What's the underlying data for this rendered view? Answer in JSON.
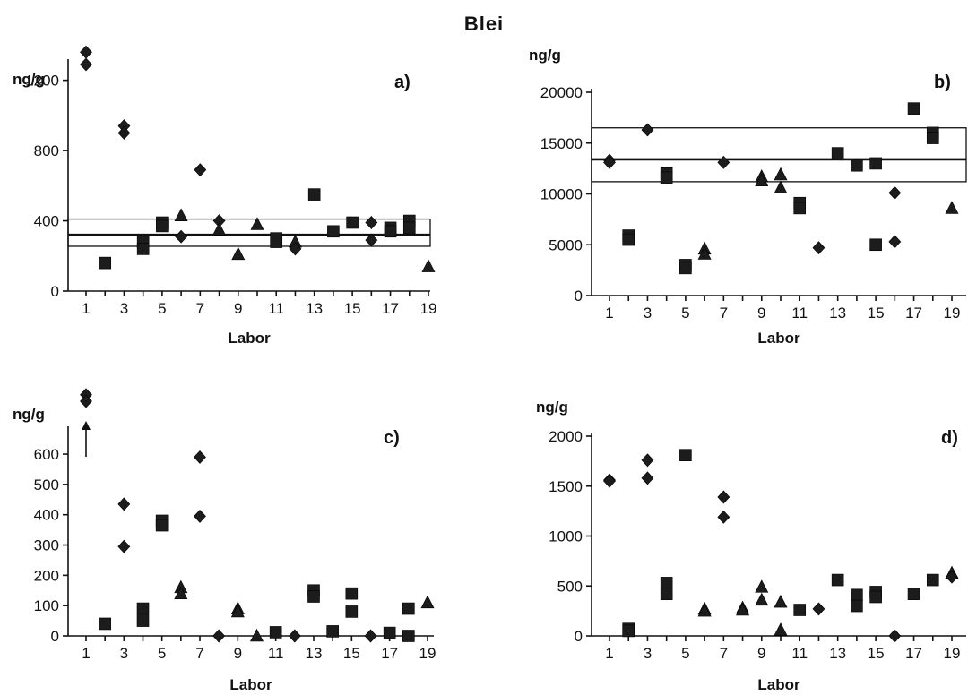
{
  "title": "Blei",
  "chart_data": [
    {
      "id": "a",
      "type": "scatter",
      "panel_label": "a)",
      "ylabel": "ng/g",
      "xlabel": "Labor",
      "xlim": [
        0.5,
        19.5
      ],
      "ylim": [
        0,
        1300
      ],
      "yticks": [
        0,
        400,
        800,
        1200
      ],
      "xticks": [
        1,
        3,
        5,
        7,
        9,
        11,
        13,
        15,
        17,
        19
      ],
      "band": {
        "lower": 255,
        "mean": 320,
        "upper": 410
      },
      "points": [
        {
          "x": 1,
          "y": 1360,
          "marker": "diamond"
        },
        {
          "x": 1,
          "y": 1290,
          "marker": "diamond"
        },
        {
          "x": 2,
          "y": 160,
          "marker": "square"
        },
        {
          "x": 3,
          "y": 940,
          "marker": "diamond"
        },
        {
          "x": 3,
          "y": 900,
          "marker": "diamond"
        },
        {
          "x": 4,
          "y": 280,
          "marker": "square"
        },
        {
          "x": 4,
          "y": 240,
          "marker": "square"
        },
        {
          "x": 5,
          "y": 390,
          "marker": "square"
        },
        {
          "x": 5,
          "y": 370,
          "marker": "square"
        },
        {
          "x": 6,
          "y": 430,
          "marker": "triangle"
        },
        {
          "x": 6,
          "y": 310,
          "marker": "diamond"
        },
        {
          "x": 7,
          "y": 690,
          "marker": "diamond"
        },
        {
          "x": 8,
          "y": 400,
          "marker": "diamond"
        },
        {
          "x": 8,
          "y": 350,
          "marker": "triangle"
        },
        {
          "x": 9,
          "y": 210,
          "marker": "triangle"
        },
        {
          "x": 10,
          "y": 380,
          "marker": "triangle"
        },
        {
          "x": 11,
          "y": 300,
          "marker": "square"
        },
        {
          "x": 11,
          "y": 280,
          "marker": "square"
        },
        {
          "x": 12,
          "y": 280,
          "marker": "triangle"
        },
        {
          "x": 12,
          "y": 240,
          "marker": "diamond"
        },
        {
          "x": 13,
          "y": 550,
          "marker": "square"
        },
        {
          "x": 14,
          "y": 340,
          "marker": "square"
        },
        {
          "x": 15,
          "y": 390,
          "marker": "square"
        },
        {
          "x": 16,
          "y": 390,
          "marker": "diamond"
        },
        {
          "x": 16,
          "y": 290,
          "marker": "diamond"
        },
        {
          "x": 17,
          "y": 360,
          "marker": "square"
        },
        {
          "x": 17,
          "y": 340,
          "marker": "square"
        },
        {
          "x": 18,
          "y": 400,
          "marker": "square"
        },
        {
          "x": 18,
          "y": 360,
          "marker": "square"
        },
        {
          "x": 19,
          "y": 140,
          "marker": "triangle"
        }
      ]
    },
    {
      "id": "b",
      "type": "scatter",
      "panel_label": "b)",
      "ylabel": "ng/g",
      "xlabel": "Labor",
      "xlim": [
        0.5,
        19.5
      ],
      "ylim": [
        0,
        20000
      ],
      "yticks": [
        0,
        5000,
        10000,
        15000,
        20000
      ],
      "xticks": [
        1,
        3,
        5,
        7,
        9,
        11,
        13,
        15,
        17,
        19
      ],
      "band": {
        "lower": 11200,
        "mean": 13400,
        "upper": 16500
      },
      "points": [
        {
          "x": 1,
          "y": 13300,
          "marker": "diamond"
        },
        {
          "x": 1,
          "y": 13100,
          "marker": "diamond"
        },
        {
          "x": 2,
          "y": 5900,
          "marker": "square"
        },
        {
          "x": 2,
          "y": 5500,
          "marker": "square"
        },
        {
          "x": 3,
          "y": 16300,
          "marker": "diamond"
        },
        {
          "x": 4,
          "y": 12000,
          "marker": "square"
        },
        {
          "x": 4,
          "y": 11600,
          "marker": "square"
        },
        {
          "x": 5,
          "y": 3000,
          "marker": "square"
        },
        {
          "x": 5,
          "y": 2700,
          "marker": "square"
        },
        {
          "x": 6,
          "y": 4600,
          "marker": "triangle"
        },
        {
          "x": 6,
          "y": 4100,
          "marker": "triangle"
        },
        {
          "x": 7,
          "y": 13100,
          "marker": "diamond"
        },
        {
          "x": 9,
          "y": 11700,
          "marker": "triangle"
        },
        {
          "x": 9,
          "y": 11300,
          "marker": "triangle"
        },
        {
          "x": 10,
          "y": 11900,
          "marker": "triangle"
        },
        {
          "x": 10,
          "y": 10600,
          "marker": "triangle"
        },
        {
          "x": 11,
          "y": 9100,
          "marker": "square"
        },
        {
          "x": 11,
          "y": 8600,
          "marker": "square"
        },
        {
          "x": 12,
          "y": 4700,
          "marker": "diamond"
        },
        {
          "x": 13,
          "y": 14000,
          "marker": "square"
        },
        {
          "x": 14,
          "y": 12800,
          "marker": "square"
        },
        {
          "x": 15,
          "y": 13000,
          "marker": "square"
        },
        {
          "x": 15,
          "y": 5000,
          "marker": "square"
        },
        {
          "x": 16,
          "y": 10100,
          "marker": "diamond"
        },
        {
          "x": 16,
          "y": 5300,
          "marker": "diamond"
        },
        {
          "x": 17,
          "y": 18400,
          "marker": "square"
        },
        {
          "x": 18,
          "y": 16000,
          "marker": "square"
        },
        {
          "x": 18,
          "y": 15500,
          "marker": "square"
        },
        {
          "x": 19,
          "y": 8600,
          "marker": "triangle"
        }
      ]
    },
    {
      "id": "c",
      "type": "scatter",
      "panel_label": "c)",
      "ylabel": "ng/g",
      "xlabel": "Labor",
      "xlim": [
        0.5,
        19.5
      ],
      "ylim": [
        0,
        680
      ],
      "yticks": [
        0,
        100,
        200,
        300,
        400,
        500,
        600
      ],
      "xticks": [
        1,
        3,
        5,
        7,
        9,
        11,
        13,
        15,
        17,
        19
      ],
      "arrow_at_x": 1,
      "points": [
        {
          "x": 1,
          "y": 672,
          "marker": "diamond"
        },
        {
          "x": 1,
          "y": 660,
          "marker": "diamond"
        },
        {
          "x": 2,
          "y": 40,
          "marker": "square"
        },
        {
          "x": 3,
          "y": 435,
          "marker": "diamond"
        },
        {
          "x": 3,
          "y": 295,
          "marker": "diamond"
        },
        {
          "x": 4,
          "y": 90,
          "marker": "square"
        },
        {
          "x": 4,
          "y": 50,
          "marker": "square"
        },
        {
          "x": 5,
          "y": 380,
          "marker": "square"
        },
        {
          "x": 5,
          "y": 365,
          "marker": "square"
        },
        {
          "x": 6,
          "y": 160,
          "marker": "triangle"
        },
        {
          "x": 6,
          "y": 140,
          "marker": "triangle"
        },
        {
          "x": 7,
          "y": 590,
          "marker": "diamond"
        },
        {
          "x": 7,
          "y": 395,
          "marker": "diamond"
        },
        {
          "x": 8,
          "y": 0,
          "marker": "diamond"
        },
        {
          "x": 9,
          "y": 90,
          "marker": "triangle"
        },
        {
          "x": 9,
          "y": 80,
          "marker": "triangle"
        },
        {
          "x": 10,
          "y": 0,
          "marker": "triangle"
        },
        {
          "x": 11,
          "y": 12,
          "marker": "square"
        },
        {
          "x": 12,
          "y": 0,
          "marker": "diamond"
        },
        {
          "x": 13,
          "y": 150,
          "marker": "square"
        },
        {
          "x": 13,
          "y": 130,
          "marker": "square"
        },
        {
          "x": 14,
          "y": 15,
          "marker": "square"
        },
        {
          "x": 15,
          "y": 140,
          "marker": "square"
        },
        {
          "x": 15,
          "y": 80,
          "marker": "square"
        },
        {
          "x": 16,
          "y": 0,
          "marker": "diamond"
        },
        {
          "x": 17,
          "y": 10,
          "marker": "square"
        },
        {
          "x": 18,
          "y": 90,
          "marker": "square"
        },
        {
          "x": 18,
          "y": 0,
          "marker": "square"
        },
        {
          "x": 19,
          "y": 110,
          "marker": "triangle"
        }
      ]
    },
    {
      "id": "d",
      "type": "scatter",
      "panel_label": "d)",
      "ylabel": "ng/g",
      "xlabel": "Labor",
      "xlim": [
        0.5,
        19.5
      ],
      "ylim": [
        0,
        2000
      ],
      "yticks": [
        0,
        500,
        1000,
        1500,
        2000
      ],
      "xticks": [
        1,
        3,
        5,
        7,
        9,
        11,
        13,
        15,
        17,
        19
      ],
      "points": [
        {
          "x": 1,
          "y": 1560,
          "marker": "diamond"
        },
        {
          "x": 1,
          "y": 1550,
          "marker": "diamond"
        },
        {
          "x": 2,
          "y": 70,
          "marker": "square"
        },
        {
          "x": 2,
          "y": 50,
          "marker": "square"
        },
        {
          "x": 3,
          "y": 1760,
          "marker": "diamond"
        },
        {
          "x": 3,
          "y": 1580,
          "marker": "diamond"
        },
        {
          "x": 4,
          "y": 530,
          "marker": "square"
        },
        {
          "x": 4,
          "y": 420,
          "marker": "square"
        },
        {
          "x": 5,
          "y": 1810,
          "marker": "square"
        },
        {
          "x": 6,
          "y": 270,
          "marker": "triangle"
        },
        {
          "x": 6,
          "y": 250,
          "marker": "triangle"
        },
        {
          "x": 7,
          "y": 1390,
          "marker": "diamond"
        },
        {
          "x": 7,
          "y": 1190,
          "marker": "diamond"
        },
        {
          "x": 8,
          "y": 280,
          "marker": "triangle"
        },
        {
          "x": 8,
          "y": 260,
          "marker": "triangle"
        },
        {
          "x": 9,
          "y": 490,
          "marker": "triangle"
        },
        {
          "x": 9,
          "y": 360,
          "marker": "triangle"
        },
        {
          "x": 10,
          "y": 340,
          "marker": "triangle"
        },
        {
          "x": 10,
          "y": 60,
          "marker": "triangle"
        },
        {
          "x": 11,
          "y": 260,
          "marker": "square"
        },
        {
          "x": 12,
          "y": 270,
          "marker": "diamond"
        },
        {
          "x": 13,
          "y": 560,
          "marker": "square"
        },
        {
          "x": 14,
          "y": 410,
          "marker": "square"
        },
        {
          "x": 14,
          "y": 300,
          "marker": "square"
        },
        {
          "x": 15,
          "y": 440,
          "marker": "square"
        },
        {
          "x": 15,
          "y": 390,
          "marker": "square"
        },
        {
          "x": 16,
          "y": 0,
          "marker": "diamond"
        },
        {
          "x": 17,
          "y": 420,
          "marker": "square"
        },
        {
          "x": 18,
          "y": 560,
          "marker": "square"
        },
        {
          "x": 19,
          "y": 630,
          "marker": "triangle"
        },
        {
          "x": 19,
          "y": 590,
          "marker": "diamond"
        }
      ]
    }
  ]
}
